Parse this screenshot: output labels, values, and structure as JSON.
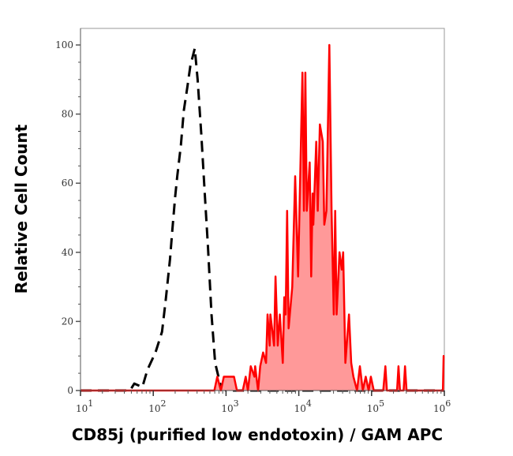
{
  "chart_data": {
    "type": "area",
    "title": "",
    "xlabel": "CD85j (purified low endotoxin) / GAM APC",
    "ylabel": "Relative Cell Count",
    "x_scale": "log",
    "xlim": [
      1,
      6
    ],
    "x_unit_note": "x values are log10 of fluorescence intensity, as labeled by ticks 10^1..10^6",
    "ylim": [
      0,
      100
    ],
    "grid": false,
    "legend": "none",
    "y_ticks": [
      0,
      20,
      40,
      60,
      80,
      100
    ],
    "x_ticks": [
      {
        "base": "10",
        "exp": "1"
      },
      {
        "base": "10",
        "exp": "2"
      },
      {
        "base": "10",
        "exp": "3"
      },
      {
        "base": "10",
        "exp": "4"
      },
      {
        "base": "10",
        "exp": "5"
      },
      {
        "base": "10",
        "exp": "6"
      }
    ],
    "series": [
      {
        "style": "dashed-line",
        "color": "#000000",
        "log10_x": [
          1.0,
          1.68,
          1.74,
          1.85,
          1.92,
          2.03,
          2.12,
          2.17,
          2.23,
          2.26,
          2.3,
          2.33,
          2.38,
          2.42,
          2.47,
          2.51,
          2.57,
          2.61,
          2.66,
          2.71,
          2.75,
          2.8,
          2.85,
          2.93,
          3.0,
          6.0
        ],
        "y": [
          0,
          0,
          2,
          1,
          6,
          11,
          17,
          26,
          38,
          46,
          56,
          62,
          71,
          81,
          88,
          94,
          99,
          90,
          74,
          56,
          42,
          22,
          8,
          1,
          0,
          0
        ]
      },
      {
        "style": "filled-area",
        "color": "#ff0000",
        "fill": "#ff9999",
        "log10_x": [
          1.0,
          2.84,
          2.88,
          2.93,
          2.97,
          3.04,
          3.11,
          3.15,
          3.23,
          3.27,
          3.3,
          3.34,
          3.39,
          3.4,
          3.44,
          3.47,
          3.51,
          3.55,
          3.57,
          3.6,
          3.61,
          3.66,
          3.68,
          3.71,
          3.74,
          3.78,
          3.8,
          3.82,
          3.84,
          3.86,
          3.91,
          3.95,
          3.99,
          4.05,
          4.07,
          4.09,
          4.11,
          4.15,
          4.17,
          4.19,
          4.2,
          4.24,
          4.26,
          4.29,
          4.33,
          4.35,
          4.38,
          4.42,
          4.45,
          4.48,
          4.5,
          4.52,
          4.56,
          4.59,
          4.61,
          4.64,
          4.69,
          4.72,
          4.75,
          4.8,
          4.84,
          4.88,
          4.92,
          4.96,
          4.99,
          5.03,
          5.16,
          5.19,
          5.21,
          5.35,
          5.37,
          5.39,
          5.44,
          5.46,
          5.48,
          5.98,
          5.99,
          6.0
        ],
        "y": [
          0,
          0,
          4,
          0,
          4,
          4,
          4,
          0,
          0,
          4,
          0,
          7,
          4,
          7,
          0,
          7,
          11,
          8,
          22,
          13,
          22,
          13,
          33,
          13,
          22,
          8,
          27,
          22,
          52,
          18,
          30,
          62,
          33,
          92,
          52,
          92,
          52,
          66,
          33,
          57,
          48,
          72,
          52,
          77,
          72,
          48,
          52,
          100,
          52,
          22,
          52,
          22,
          40,
          35,
          40,
          8,
          22,
          8,
          4,
          0,
          7,
          0,
          4,
          0,
          4,
          0,
          0,
          7,
          0,
          0,
          7,
          0,
          0,
          7,
          0,
          0,
          10,
          10
        ]
      }
    ]
  }
}
